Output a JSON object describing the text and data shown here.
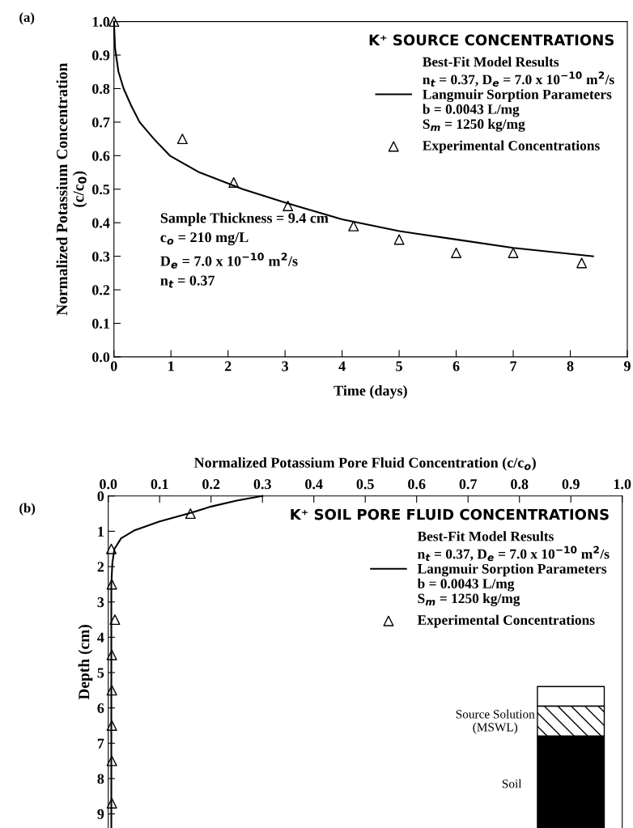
{
  "chart_data": [
    {
      "type": "line",
      "xlabel": "Time (days)",
      "ylabel": "Normalized Potassium Concentration\n(c/c$_{0}$)",
      "legend_title": "K⁺ SOURCE CONCENTRATIONS",
      "xlim": [
        0,
        9
      ],
      "xticks": [
        0,
        1,
        2,
        3,
        4,
        5,
        6,
        7,
        8,
        9
      ],
      "ylim": [
        0,
        1.0
      ],
      "yticks": [
        {
          "value": 0,
          "label": "0.0"
        },
        0.1,
        0.2,
        0.3,
        0.4,
        0.5,
        0.6,
        0.7,
        0.8,
        0.9,
        {
          "value": 1,
          "label": "1.0"
        }
      ],
      "legend": "top right",
      "grid": false,
      "series": [
        {
          "type": "line",
          "name": "Best-Fit Model Results\nn$_{t}$ = 0.37, D$_{e}$ = 7.0 x 10$^{−10}$ m$^{2}$/s\nLangmuir Sorption Parameters\nb = 0.0043 L/mg\nS$_{m}$ = 1250 kg/mg",
          "color": "#000000",
          "marker": "none",
          "line_style": "solid",
          "x": [
            0,
            0.02,
            0.08,
            0.17,
            0.3,
            0.45,
            0.7,
            0.98,
            1.5,
            2.26,
            3,
            4,
            5,
            6,
            7,
            8.4
          ],
          "values": [
            1.0,
            0.92,
            0.85,
            0.8,
            0.75,
            0.7,
            0.65,
            0.6,
            0.55,
            0.5,
            0.46,
            0.41,
            0.375,
            0.35,
            0.325,
            0.3
          ]
        },
        {
          "type": "scatter",
          "name": "Experimental Concentrations",
          "color": "#000000",
          "marker": "triangle",
          "x": [
            0,
            1.2,
            2.1,
            3.05,
            4.2,
            5.0,
            6.0,
            7.0,
            8.2
          ],
          "values": [
            1.0,
            0.65,
            0.52,
            0.45,
            0.39,
            0.35,
            0.31,
            0.31,
            0.28
          ]
        }
      ],
      "annotations": [
        "(a)",
        "Sample Thickness = 9.4 cm\nc$_{o}$ = 210 mg/L\nD$_{e}$ = 7.0 x 10$^{−10}$ m$^{2}$/s\nn$_{t}$ = 0.37"
      ]
    },
    {
      "type": "line",
      "orientation": "horizontal",
      "xlabel": "Normalized Potassium Pore Fluid Concentration (c/c$_{o}$)",
      "ylabel": "Depth (cm)",
      "legend_title": "K⁺ SOIL PORE FLUID CONCENTRATIONS",
      "xlim": [
        0,
        1.0
      ],
      "xticks": [
        {
          "value": 0,
          "label": "0.0"
        },
        0.1,
        0.2,
        0.3,
        0.4,
        0.5,
        0.6,
        0.7,
        0.8,
        0.9,
        {
          "value": 1,
          "label": "1.0"
        }
      ],
      "ylim": [
        9.4,
        0
      ],
      "yticks": [
        0,
        1,
        2,
        3,
        4,
        5,
        6,
        7,
        8,
        9
      ],
      "legend": "top right",
      "grid": false,
      "series": [
        {
          "type": "line",
          "name": "Best-Fit Model Results\nn$_{t}$ = 0.37, D$_{e}$ = 7.0 x 10$^{−10}$ m$^{2}$/s\nLangmuir Sorption Parameters\nb = 0.0043 L/mg\nS$_{m}$ = 1250 kg/mg",
          "color": "#000000",
          "marker": "none",
          "line_style": "solid",
          "x": [
            0,
            0.13,
            0.3,
            0.48,
            0.72,
            0.98,
            1.2,
            1.5,
            1.9,
            2.5,
            9.4
          ],
          "values": [
            0.3,
            0.25,
            0.2,
            0.16,
            0.1,
            0.05,
            0.025,
            0.012,
            0.008,
            0.006,
            0.006
          ]
        },
        {
          "type": "scatter",
          "name": "Experimental Concentrations",
          "color": "#000000",
          "marker": "triangle",
          "x": [
            0.5,
            1.5,
            2.5,
            3.5,
            4.5,
            5.5,
            6.5,
            7.5,
            8.7
          ],
          "values": [
            0.16,
            0.006,
            0.007,
            0.013,
            0.007,
            0.007,
            0.007,
            0.007,
            0.007
          ]
        }
      ],
      "annotations": [
        "(b)",
        "Source Solution\n(MSWL)",
        "Soil"
      ]
    }
  ]
}
